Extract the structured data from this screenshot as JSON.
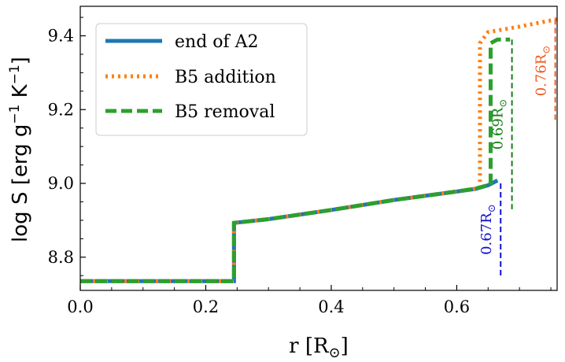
{
  "chart_data": {
    "type": "line",
    "xlabel": "r [R",
    "xlabel_sub": "⊙",
    "xlabel_close": "]",
    "ylabel": "log S [erg g",
    "ylabel_sup1": "−1",
    "ylabel_mid": " K",
    "ylabel_sup2": "−1",
    "ylabel_close": "]",
    "xlim": [
      0.0,
      0.76
    ],
    "ylim": [
      8.71,
      9.48
    ],
    "xticks": [
      0.0,
      0.2,
      0.4,
      0.6
    ],
    "xtick_labels": [
      "0.0",
      "0.2",
      "0.4",
      "0.6"
    ],
    "yticks": [
      8.8,
      9.0,
      9.2,
      9.4
    ],
    "ytick_labels": [
      "8.8",
      "9.0",
      "9.2",
      "9.4"
    ],
    "legend_position": "upper-left",
    "series": [
      {
        "name": "end of A2",
        "color": "#1f77b4",
        "style": "solid",
        "x": [
          0.0,
          0.245,
          0.245,
          0.3,
          0.4,
          0.5,
          0.6,
          0.63,
          0.65,
          0.665
        ],
        "y": [
          8.735,
          8.735,
          8.893,
          8.903,
          8.928,
          8.955,
          8.978,
          8.985,
          8.995,
          9.008
        ]
      },
      {
        "name": "B5 addition",
        "color": "#ff7f0e",
        "style": "dotted",
        "x": [
          0.0,
          0.245,
          0.245,
          0.3,
          0.4,
          0.5,
          0.6,
          0.63,
          0.637,
          0.637,
          0.65,
          0.7,
          0.76
        ],
        "y": [
          8.735,
          8.735,
          8.893,
          8.903,
          8.928,
          8.955,
          8.978,
          8.986,
          8.99,
          9.38,
          9.41,
          9.425,
          9.445
        ]
      },
      {
        "name": "B5 removal",
        "color": "#2ca02c",
        "style": "dashed",
        "x": [
          0.0,
          0.245,
          0.245,
          0.3,
          0.4,
          0.5,
          0.6,
          0.63,
          0.645,
          0.654,
          0.654,
          0.665,
          0.685
        ],
        "y": [
          8.735,
          8.735,
          8.893,
          8.903,
          8.928,
          8.955,
          8.978,
          8.986,
          8.993,
          8.995,
          9.38,
          9.39,
          9.39
        ]
      }
    ],
    "annotations": [
      {
        "text": "0.67R",
        "sub": "⊙",
        "color": "#1010d0",
        "x": 0.67,
        "y_top": 9.0,
        "y_bottom": 8.75
      },
      {
        "text": "0.69R",
        "sub": "⊙",
        "color": "#168016",
        "x": 0.688,
        "y_top": 9.39,
        "y_bottom": 8.93
      },
      {
        "text": "0.76R",
        "sub": "⊙",
        "color": "#f25c22",
        "x": 0.757,
        "y_top": 9.445,
        "y_bottom": 9.165
      }
    ]
  }
}
